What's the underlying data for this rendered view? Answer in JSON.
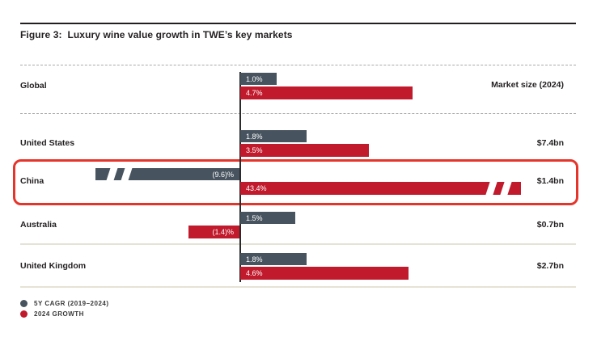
{
  "figure": {
    "title": "Figure 3:  Luxury wine value growth in TWE’s key markets",
    "market_size_header": "Market size (2024)"
  },
  "chart_data": {
    "type": "bar",
    "orientation": "horizontal",
    "unit": "percent",
    "categories": [
      "Global",
      "United States",
      "China",
      "Australia",
      "United Kingdom"
    ],
    "series": [
      {
        "name": "5Y CAGR (2019–2024)",
        "color": "#47535e",
        "values": [
          1.0,
          1.8,
          -9.6,
          1.5,
          1.8
        ],
        "labels": [
          "1.0%",
          "1.8%",
          "(9.6)%",
          "1.5%",
          "1.8%"
        ],
        "broken": [
          false,
          false,
          true,
          false,
          false
        ]
      },
      {
        "name": "2024 GROWTH",
        "color": "#c01a2c",
        "values": [
          4.7,
          3.5,
          43.4,
          -1.4,
          4.6
        ],
        "labels": [
          "4.7%",
          "3.5%",
          "43.4%",
          "(1.4)%",
          "4.6%"
        ],
        "broken": [
          false,
          false,
          true,
          false,
          false
        ]
      }
    ],
    "market_sizes": [
      "",
      "$7.4bn",
      "$1.4bn",
      "$0.7bn",
      "$2.7bn"
    ],
    "highlighted_category": "China",
    "highlight_color": "#e5352b",
    "notes": "China bars are truncated with axis-break stripes; parentheses denote negative values",
    "legend_position": "bottom-left",
    "grid": "dashed row separators above and below Global, solid beige separators around United Kingdom"
  }
}
